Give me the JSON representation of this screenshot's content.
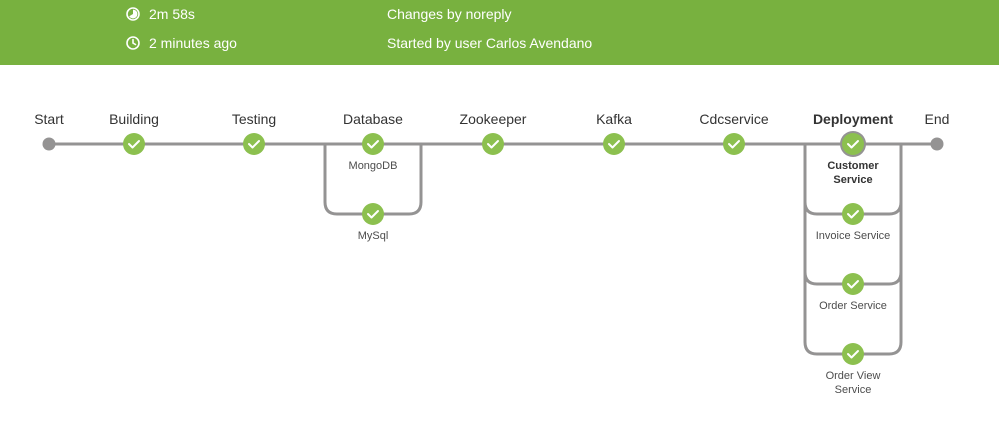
{
  "header": {
    "duration": "2m 58s",
    "time_ago": "2 minutes ago",
    "changes": "Changes by noreply",
    "started_by": "Started by user Carlos Avendano",
    "icons": {
      "duration": "pie-timer-icon",
      "time_ago": "clock-icon"
    }
  },
  "colors": {
    "header_bg": "#78b13f",
    "success": "#8cc04f",
    "track": "#949393",
    "terminal": "#949393"
  },
  "pipeline": {
    "start_label": "Start",
    "end_label": "End",
    "stages": [
      {
        "label": "Building",
        "status": "success"
      },
      {
        "label": "Testing",
        "status": "success"
      },
      {
        "label": "Database",
        "status": "success",
        "parallel": [
          "MongoDB",
          "MySql"
        ]
      },
      {
        "label": "Zookeeper",
        "status": "success"
      },
      {
        "label": "Kafka",
        "status": "success"
      },
      {
        "label": "Cdcservice",
        "status": "success"
      },
      {
        "label": "Deployment",
        "status": "success",
        "selected": true,
        "parallel": [
          "Customer Service",
          "Invoice Service",
          "Order Service",
          "Order View Service"
        ]
      }
    ]
  }
}
